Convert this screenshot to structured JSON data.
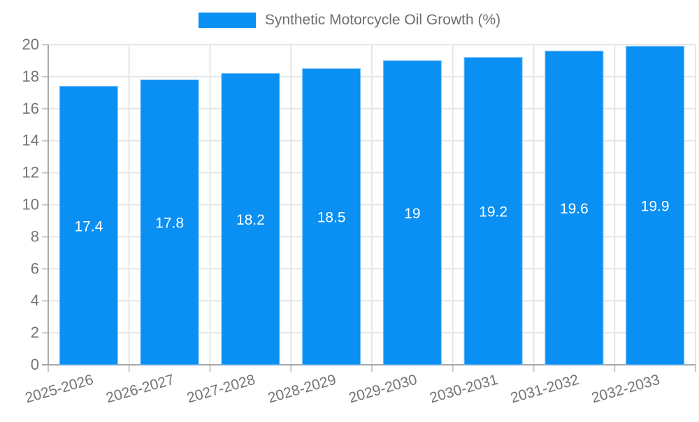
{
  "legend": {
    "label": "Synthetic Motorcycle Oil Growth (%)"
  },
  "chart_data": {
    "type": "bar",
    "title": "Synthetic Motorcycle Oil Growth (%)",
    "categories": [
      "2025-2026",
      "2026-2027",
      "2027-2028",
      "2028-2029",
      "2029-2030",
      "2030-2031",
      "2031-2032",
      "2032-2033"
    ],
    "values": [
      17.4,
      17.8,
      18.2,
      18.5,
      19,
      19.2,
      19.6,
      19.9
    ],
    "value_labels": [
      "17.4",
      "17.8",
      "18.2",
      "18.5",
      "19",
      "19.2",
      "19.6",
      "19.9"
    ],
    "xlabel": "",
    "ylabel": "",
    "ylim": [
      0,
      20
    ],
    "ytick_step": 2,
    "grid": true,
    "legend_position": "top",
    "colors": {
      "bar": "#0a8ff2",
      "bar_border": "#7cc0f8",
      "grid": "#e6e6e6",
      "tick": "#c9c9c9",
      "axis": "#a8a8a8",
      "label": "#757575",
      "value_label": "#ffffff",
      "background": "#ffffff"
    }
  }
}
